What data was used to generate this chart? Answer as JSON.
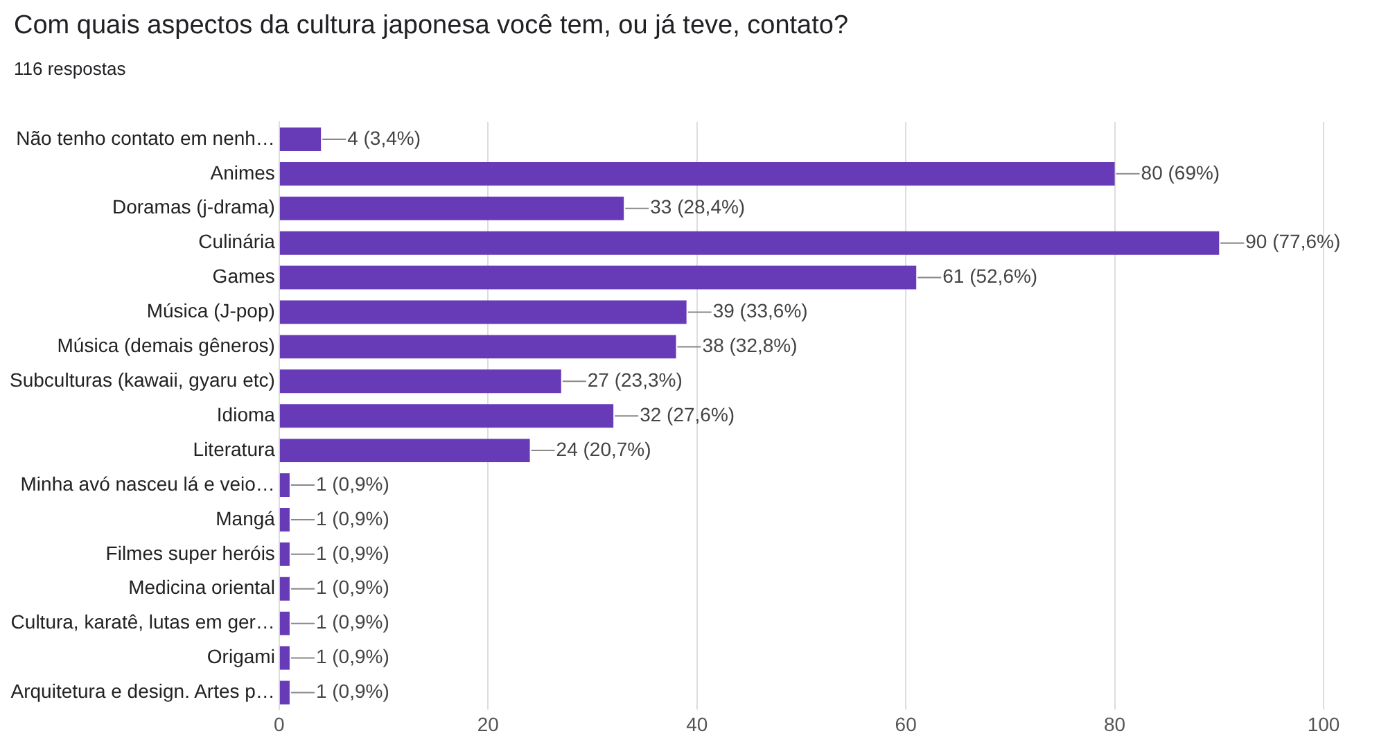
{
  "chart_data": {
    "type": "bar",
    "orientation": "horizontal",
    "title": "Com quais aspectos da cultura japonesa você tem, ou já teve, contato?",
    "subtitle": "116 respostas",
    "categories": [
      "Não tenho contato em nenh…",
      "Animes",
      "Doramas (j-drama)",
      "Culinária",
      "Games",
      "Música (J-pop)",
      "Música (demais gêneros)",
      "Subculturas (kawaii, gyaru etc)",
      "Idioma",
      "Literatura",
      "Minha avó nasceu lá e veio…",
      "Mangá",
      "Filmes super heróis",
      "Medicina oriental",
      "Cultura, karatê, lutas em ger…",
      "Origami",
      "Arquitetura e design. Artes p…"
    ],
    "values": [
      4,
      80,
      33,
      90,
      61,
      39,
      38,
      27,
      32,
      24,
      1,
      1,
      1,
      1,
      1,
      1,
      1
    ],
    "value_labels": [
      "4 (3,4%)",
      "80 (69%)",
      "33 (28,4%)",
      "90 (77,6%)",
      "61 (52,6%)",
      "39 (33,6%)",
      "38 (32,8%)",
      "27 (23,3%)",
      "32 (27,6%)",
      "24 (20,7%)",
      "1 (0,9%)",
      "1 (0,9%)",
      "1 (0,9%)",
      "1 (0,9%)",
      "1 (0,9%)",
      "1 (0,9%)",
      "1 (0,9%)"
    ],
    "color": "#673ab7",
    "xlim": [
      0,
      100
    ],
    "xticks": [
      0,
      20,
      40,
      60,
      80,
      100
    ],
    "grid": "x"
  }
}
